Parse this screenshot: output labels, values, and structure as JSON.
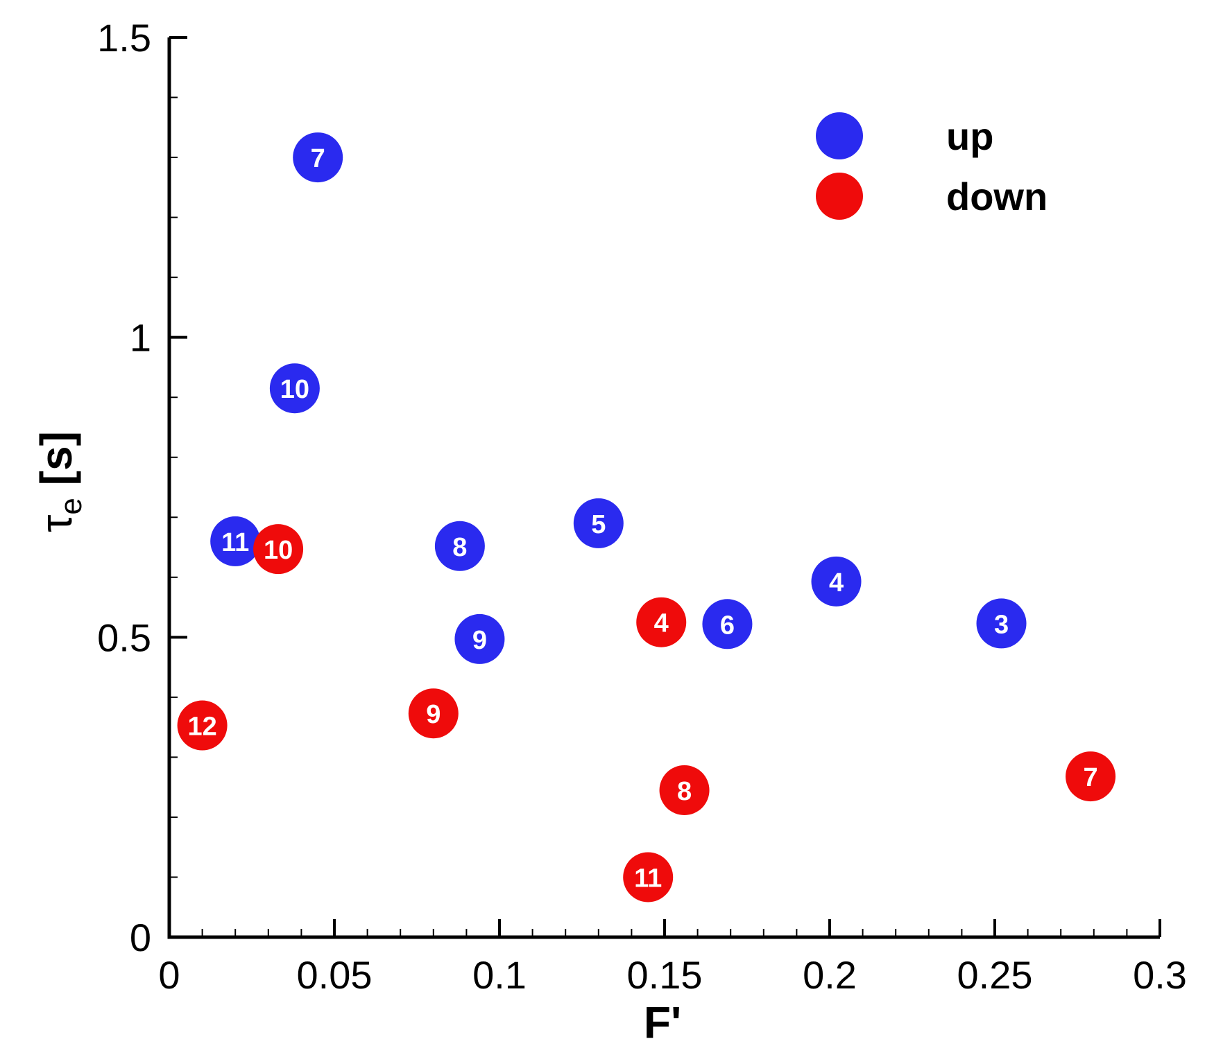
{
  "chart_data": {
    "type": "scatter",
    "xlabel": "F'",
    "ylabel_main": "τ",
    "ylabel_sub": "e",
    "ylabel_unit": " [s]",
    "xlim": [
      0,
      0.3
    ],
    "ylim": [
      0,
      1.5
    ],
    "x_ticks": [
      0,
      0.05,
      0.1,
      0.15,
      0.2,
      0.25,
      0.3
    ],
    "x_tick_labels": [
      "0",
      "0.05",
      "0.1",
      "0.15",
      "0.2",
      "0.25",
      "0.3"
    ],
    "x_minor_step": 0.01,
    "y_ticks": [
      0,
      0.5,
      1,
      1.5
    ],
    "y_tick_labels": [
      "0",
      "0.5",
      "1",
      "1.5"
    ],
    "y_minor_step": 0.1,
    "grid": false,
    "legend_position": "top-right",
    "series": [
      {
        "name": "up",
        "color": "#2a2aef",
        "points": [
          {
            "x": 0.045,
            "y": 1.3,
            "label": "7"
          },
          {
            "x": 0.038,
            "y": 0.915,
            "label": "10"
          },
          {
            "x": 0.02,
            "y": 0.66,
            "label": "11"
          },
          {
            "x": 0.088,
            "y": 0.652,
            "label": "8"
          },
          {
            "x": 0.13,
            "y": 0.69,
            "label": "5"
          },
          {
            "x": 0.094,
            "y": 0.497,
            "label": "9"
          },
          {
            "x": 0.169,
            "y": 0.522,
            "label": "6"
          },
          {
            "x": 0.202,
            "y": 0.593,
            "label": "4"
          },
          {
            "x": 0.252,
            "y": 0.523,
            "label": "3"
          }
        ]
      },
      {
        "name": "down",
        "color": "#ef0b0b",
        "points": [
          {
            "x": 0.033,
            "y": 0.647,
            "label": "10"
          },
          {
            "x": 0.149,
            "y": 0.525,
            "label": "4"
          },
          {
            "x": 0.08,
            "y": 0.373,
            "label": "9"
          },
          {
            "x": 0.01,
            "y": 0.353,
            "label": "12"
          },
          {
            "x": 0.156,
            "y": 0.245,
            "label": "8"
          },
          {
            "x": 0.279,
            "y": 0.268,
            "label": "7"
          },
          {
            "x": 0.145,
            "y": 0.1,
            "label": "11"
          }
        ]
      }
    ]
  }
}
